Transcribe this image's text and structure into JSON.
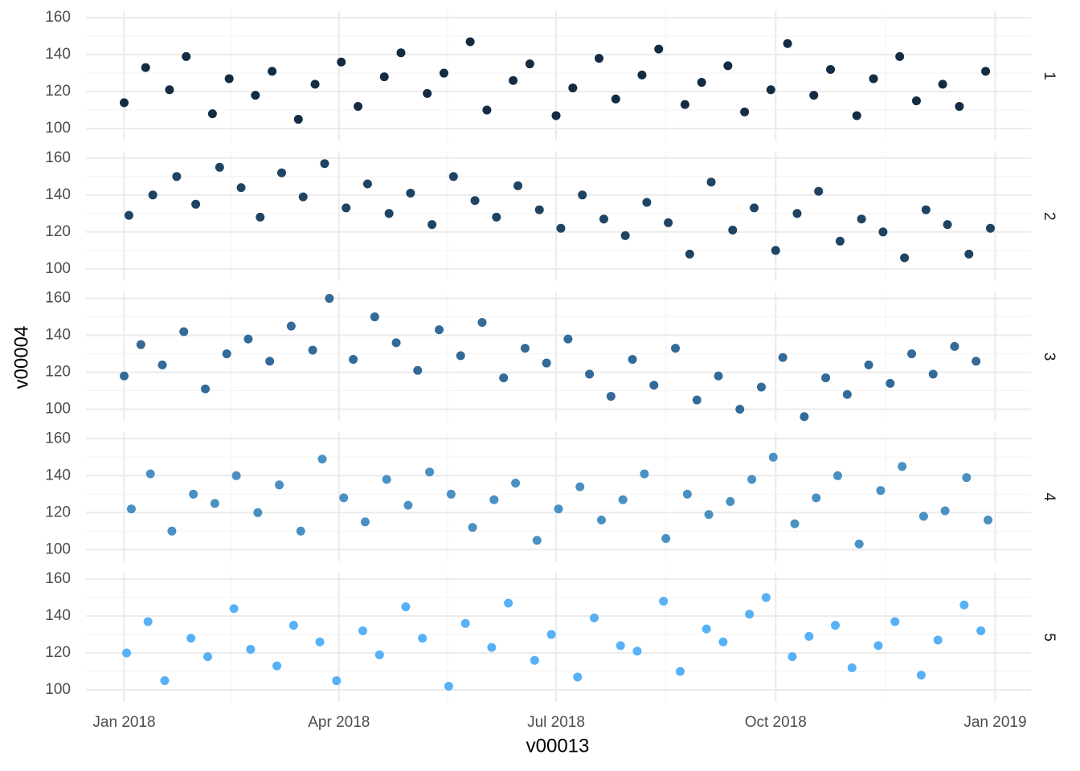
{
  "chart_data": {
    "type": "scatter",
    "x_label": "v00013",
    "y_label": "v00004",
    "grid": true,
    "facet_by_series": true,
    "xlim": [
      -16,
      380
    ],
    "xticks": [
      {
        "value": 0,
        "label": "Jan 2018"
      },
      {
        "value": 90,
        "label": "Apr 2018"
      },
      {
        "value": 181,
        "label": "Jul 2018"
      },
      {
        "value": 273,
        "label": "Oct 2018"
      },
      {
        "value": 365,
        "label": "Jan 2019"
      }
    ],
    "ylim": [
      93.5,
      163.5
    ],
    "yticks": [
      100,
      120,
      140,
      160
    ],
    "series": [
      {
        "name": "1",
        "color": "#132b43",
        "x": [
          0,
          9,
          19,
          26,
          37,
          44,
          55,
          62,
          73,
          80,
          91,
          98,
          109,
          116,
          127,
          134,
          145,
          152,
          163,
          170,
          181,
          188,
          199,
          206,
          217,
          224,
          235,
          242,
          253,
          260,
          271,
          278,
          289,
          296,
          307,
          314,
          325,
          332,
          343,
          350,
          361
        ],
        "values": [
          114,
          133,
          121,
          139,
          108,
          127,
          118,
          131,
          105,
          124,
          136,
          112,
          128,
          141,
          119,
          130,
          147,
          110,
          126,
          135,
          107,
          122,
          138,
          116,
          129,
          143,
          113,
          125,
          134,
          109,
          121,
          146,
          118,
          132,
          107,
          127,
          139,
          115,
          124,
          112,
          131
        ]
      },
      {
        "name": "2",
        "color": "#1f4463",
        "x": [
          2,
          12,
          22,
          30,
          40,
          49,
          57,
          66,
          75,
          84,
          93,
          102,
          111,
          120,
          129,
          138,
          147,
          156,
          165,
          174,
          183,
          192,
          201,
          210,
          219,
          228,
          237,
          246,
          255,
          264,
          273,
          282,
          291,
          300,
          309,
          318,
          327,
          336,
          345,
          354,
          363
        ],
        "values": [
          129,
          140,
          150,
          135,
          155,
          144,
          128,
          152,
          139,
          157,
          133,
          146,
          130,
          141,
          124,
          150,
          137,
          128,
          145,
          132,
          122,
          140,
          127,
          118,
          136,
          125,
          108,
          147,
          121,
          133,
          110,
          130,
          142,
          115,
          127,
          120,
          106,
          132,
          124,
          108,
          122
        ]
      },
      {
        "name": "3",
        "color": "#336a98",
        "x": [
          0,
          7,
          16,
          25,
          34,
          43,
          52,
          61,
          70,
          79,
          86,
          96,
          105,
          114,
          123,
          132,
          141,
          150,
          159,
          168,
          177,
          186,
          195,
          204,
          213,
          222,
          231,
          240,
          249,
          258,
          267,
          276,
          285,
          294,
          303,
          312,
          321,
          330,
          339,
          348,
          357
        ],
        "values": [
          118,
          135,
          124,
          142,
          111,
          130,
          138,
          126,
          145,
          132,
          160,
          127,
          150,
          136,
          121,
          143,
          129,
          147,
          117,
          133,
          125,
          138,
          119,
          107,
          127,
          113,
          133,
          105,
          118,
          100,
          112,
          128,
          96,
          117,
          108,
          124,
          114,
          130,
          119,
          134,
          126
        ]
      },
      {
        "name": "4",
        "color": "#4a90c2",
        "x": [
          3,
          11,
          20,
          29,
          38,
          47,
          56,
          65,
          74,
          83,
          92,
          101,
          110,
          119,
          128,
          137,
          146,
          155,
          164,
          173,
          182,
          191,
          200,
          209,
          218,
          227,
          236,
          245,
          254,
          263,
          272,
          281,
          290,
          299,
          308,
          317,
          326,
          335,
          344,
          353,
          362
        ],
        "values": [
          122,
          141,
          110,
          130,
          125,
          140,
          120,
          135,
          110,
          149,
          128,
          115,
          138,
          124,
          142,
          130,
          112,
          127,
          136,
          105,
          122,
          134,
          116,
          127,
          141,
          106,
          130,
          119,
          126,
          138,
          150,
          114,
          128,
          140,
          103,
          132,
          145,
          118,
          121,
          139,
          116
        ]
      },
      {
        "name": "5",
        "color": "#56b1f7",
        "x": [
          1,
          10,
          17,
          28,
          35,
          46,
          53,
          64,
          71,
          82,
          89,
          100,
          107,
          118,
          125,
          136,
          143,
          154,
          161,
          172,
          179,
          190,
          197,
          208,
          215,
          226,
          233,
          244,
          251,
          262,
          269,
          280,
          287,
          298,
          305,
          316,
          323,
          334,
          341,
          352,
          359
        ],
        "values": [
          120,
          137,
          105,
          128,
          118,
          144,
          122,
          113,
          135,
          126,
          105,
          132,
          119,
          145,
          128,
          102,
          136,
          123,
          147,
          116,
          130,
          107,
          139,
          124,
          121,
          148,
          110,
          133,
          126,
          141,
          150,
          118,
          129,
          135,
          112,
          124,
          137,
          108,
          127,
          146,
          132
        ]
      }
    ]
  }
}
